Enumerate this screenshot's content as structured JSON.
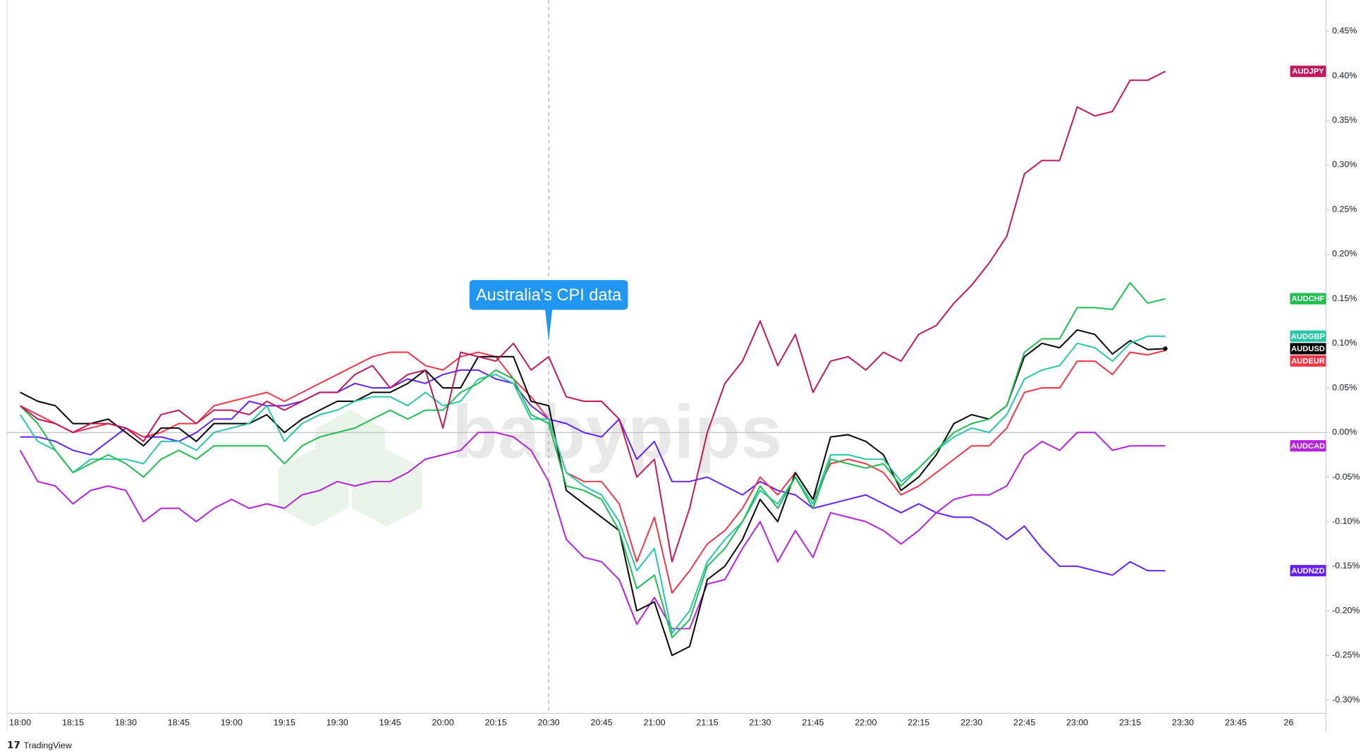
{
  "chart_data": {
    "type": "line",
    "annotation": {
      "text": "Australia's CPI data",
      "x": "20:30"
    },
    "watermark": "babypips",
    "brand": "TradingView",
    "categories": [
      "18:00",
      null,
      null,
      "18:15",
      null,
      null,
      "18:30",
      null,
      null,
      "18:45",
      null,
      null,
      "19:00",
      null,
      null,
      "19:15",
      null,
      null,
      "19:30",
      null,
      null,
      "19:45",
      null,
      null,
      "20:00",
      null,
      null,
      "20:15",
      null,
      null,
      "20:30",
      null,
      null,
      "20:45",
      null,
      null,
      "21:00",
      null,
      null,
      "21:15",
      null,
      null,
      "21:30",
      null,
      null,
      "21:45",
      null,
      null,
      "22:00",
      null,
      null,
      "22:15",
      null,
      null,
      "22:30",
      null,
      null,
      "22:45",
      null,
      null,
      "23:00",
      null,
      null,
      "23:15",
      null,
      null,
      "23:30",
      null,
      null,
      "23:45",
      null,
      null,
      "26",
      null,
      null
    ],
    "ylim": [
      -0.315,
      0.485
    ],
    "yticks": [
      {
        "value": -0.3,
        "label": "-0.30%"
      },
      {
        "value": -0.25,
        "label": "-0.25%"
      },
      {
        "value": -0.2,
        "label": "-0.20%"
      },
      {
        "value": -0.15,
        "label": "-0.15%"
      },
      {
        "value": -0.1,
        "label": "-0.10%"
      },
      {
        "value": -0.05,
        "label": "-0.05%"
      },
      {
        "value": 0,
        "label": "0.00%"
      },
      {
        "value": 0.05,
        "label": "0.05%"
      },
      {
        "value": 0.1,
        "label": "0.10%"
      },
      {
        "value": 0.15,
        "label": "0.15%"
      },
      {
        "value": 0.2,
        "label": "0.20%"
      },
      {
        "value": 0.25,
        "label": "0.25%"
      },
      {
        "value": 0.3,
        "label": "0.30%"
      },
      {
        "value": 0.35,
        "label": "0.35%"
      },
      {
        "value": 0.4,
        "label": "0.40%"
      },
      {
        "value": 0.45,
        "label": "0.45%"
      }
    ],
    "series": [
      {
        "name": "AUDJPY",
        "color": "#c2185b",
        "values": [
          0.03,
          0.015,
          0.01,
          0.0,
          0.01,
          0.01,
          0.005,
          -0.01,
          0.02,
          0.025,
          0.01,
          0.025,
          0.025,
          0.02,
          0.035,
          0.025,
          0.035,
          0.045,
          0.045,
          0.065,
          0.075,
          0.05,
          0.065,
          0.07,
          0.005,
          0.09,
          0.085,
          0.08,
          0.1,
          0.07,
          0.085,
          0.04,
          0.035,
          0.035,
          0.015,
          -0.05,
          -0.03,
          -0.145,
          -0.085,
          0.0,
          0.055,
          0.08,
          0.125,
          0.075,
          0.11,
          0.045,
          0.08,
          0.085,
          0.07,
          0.09,
          0.08,
          0.11,
          0.12,
          0.145,
          0.165,
          0.19,
          0.22,
          0.29,
          0.305,
          0.305,
          0.365,
          0.355,
          0.36,
          0.395,
          0.395,
          0.405,
          null,
          null,
          null,
          null,
          null,
          null,
          null,
          null,
          null
        ]
      },
      {
        "name": "AUDCHF",
        "color": "#1fbf4f",
        "values": [
          0.03,
          0.01,
          -0.02,
          -0.045,
          -0.035,
          -0.025,
          -0.035,
          -0.05,
          -0.03,
          -0.02,
          -0.03,
          -0.015,
          -0.015,
          -0.015,
          -0.015,
          -0.035,
          -0.015,
          -0.005,
          0.0,
          0.005,
          0.015,
          0.025,
          0.015,
          0.025,
          0.025,
          0.045,
          0.055,
          0.07,
          0.06,
          0.02,
          0.01,
          -0.06,
          -0.065,
          -0.075,
          -0.11,
          -0.175,
          -0.16,
          -0.23,
          -0.21,
          -0.15,
          -0.13,
          -0.1,
          -0.06,
          -0.085,
          -0.05,
          -0.085,
          -0.03,
          -0.035,
          -0.04,
          -0.035,
          -0.06,
          -0.04,
          -0.02,
          0.0,
          0.01,
          0.015,
          0.03,
          0.09,
          0.105,
          0.105,
          0.14,
          0.14,
          0.138,
          0.168,
          0.145,
          0.15,
          null,
          null,
          null,
          null,
          null,
          null,
          null,
          null,
          null
        ]
      },
      {
        "name": "AUDGBP",
        "color": "#26c6a6",
        "values": [
          0.02,
          -0.01,
          -0.02,
          -0.045,
          -0.03,
          -0.03,
          -0.03,
          -0.035,
          -0.01,
          -0.01,
          -0.02,
          0.0,
          0.005,
          0.01,
          0.03,
          -0.01,
          0.01,
          0.02,
          0.025,
          0.035,
          0.04,
          0.04,
          0.03,
          0.045,
          0.03,
          0.035,
          0.06,
          0.065,
          0.055,
          0.015,
          0.015,
          -0.045,
          -0.06,
          -0.07,
          -0.1,
          -0.155,
          -0.13,
          -0.225,
          -0.2,
          -0.145,
          -0.12,
          -0.1,
          -0.065,
          -0.08,
          -0.05,
          -0.08,
          -0.025,
          -0.025,
          -0.03,
          -0.03,
          -0.055,
          -0.04,
          -0.02,
          -0.005,
          0.005,
          0.0,
          0.02,
          0.06,
          0.07,
          0.075,
          0.1,
          0.095,
          0.08,
          0.1,
          0.108,
          0.108,
          null,
          null,
          null,
          null,
          null,
          null,
          null,
          null,
          null
        ]
      },
      {
        "name": "AUDUSD",
        "color": "#000000",
        "values": [
          0.045,
          0.035,
          0.03,
          0.01,
          0.01,
          0.015,
          0.0,
          -0.015,
          0.005,
          0.005,
          -0.01,
          0.01,
          0.01,
          0.01,
          0.02,
          0.0,
          0.015,
          0.025,
          0.035,
          0.035,
          0.045,
          0.045,
          0.055,
          0.07,
          0.05,
          0.05,
          0.085,
          0.085,
          0.085,
          0.035,
          0.03,
          -0.065,
          -0.08,
          -0.095,
          -0.11,
          -0.2,
          -0.19,
          -0.25,
          -0.24,
          -0.165,
          -0.15,
          -0.12,
          -0.075,
          -0.1,
          -0.045,
          -0.075,
          -0.005,
          -0.0025,
          -0.01,
          -0.025,
          -0.065,
          -0.05,
          -0.025,
          0.01,
          0.02,
          0.015,
          0.03,
          0.085,
          0.1,
          0.095,
          0.115,
          0.11,
          0.088,
          0.103,
          0.093,
          0.094,
          null,
          null,
          null,
          null,
          null,
          null,
          null,
          null,
          null
        ]
      },
      {
        "name": "AUDEUR",
        "color": "#f23645",
        "values": [
          0.03,
          0.02,
          0.01,
          0.0,
          0.005,
          0.01,
          0.005,
          -0.005,
          0.0,
          0.01,
          0.01,
          0.03,
          0.035,
          0.04,
          0.045,
          0.035,
          0.045,
          0.055,
          0.065,
          0.075,
          0.085,
          0.09,
          0.09,
          0.075,
          0.07,
          0.085,
          0.09,
          0.085,
          0.06,
          0.04,
          0.015,
          -0.045,
          -0.055,
          -0.055,
          -0.08,
          -0.145,
          -0.095,
          -0.18,
          -0.155,
          -0.125,
          -0.11,
          -0.085,
          -0.05,
          -0.07,
          -0.045,
          -0.075,
          -0.035,
          -0.03,
          -0.035,
          -0.045,
          -0.07,
          -0.06,
          -0.045,
          -0.03,
          -0.015,
          -0.015,
          0.005,
          0.045,
          0.05,
          0.05,
          0.08,
          0.08,
          0.065,
          0.09,
          0.087,
          0.092,
          null,
          null,
          null,
          null,
          null,
          null,
          null,
          null,
          null
        ]
      },
      {
        "name": "AUDCAD",
        "color": "#b620e0",
        "values": [
          -0.02,
          -0.055,
          -0.06,
          -0.08,
          -0.065,
          -0.06,
          -0.065,
          -0.1,
          -0.085,
          -0.085,
          -0.1,
          -0.085,
          -0.075,
          -0.085,
          -0.08,
          -0.085,
          -0.07,
          -0.065,
          -0.055,
          -0.06,
          -0.055,
          -0.055,
          -0.045,
          -0.03,
          -0.025,
          -0.02,
          0.0,
          0.0,
          -0.005,
          -0.02,
          -0.055,
          -0.12,
          -0.14,
          -0.145,
          -0.165,
          -0.215,
          -0.185,
          -0.22,
          -0.22,
          -0.17,
          -0.165,
          -0.13,
          -0.1,
          -0.145,
          -0.11,
          -0.14,
          -0.09,
          -0.095,
          -0.1,
          -0.11,
          -0.125,
          -0.11,
          -0.09,
          -0.075,
          -0.07,
          -0.07,
          -0.06,
          -0.025,
          -0.01,
          -0.02,
          0.0,
          0.0,
          -0.02,
          -0.015,
          -0.015,
          -0.015,
          null,
          null,
          null,
          null,
          null,
          null,
          null,
          null,
          null
        ]
      },
      {
        "name": "AUDNZD",
        "color": "#651fff",
        "values": [
          -0.005,
          -0.005,
          -0.01,
          -0.02,
          -0.025,
          -0.01,
          0.005,
          -0.005,
          -0.005,
          -0.01,
          0.0,
          0.015,
          0.015,
          0.035,
          0.03,
          0.03,
          0.035,
          0.045,
          0.045,
          0.055,
          0.05,
          0.05,
          0.06,
          0.055,
          0.065,
          0.07,
          0.07,
          0.06,
          0.055,
          0.03,
          0.015,
          0.01,
          0.0,
          -0.005,
          0.015,
          -0.03,
          -0.01,
          -0.055,
          -0.055,
          -0.05,
          -0.06,
          -0.07,
          -0.055,
          -0.065,
          -0.07,
          -0.085,
          -0.08,
          -0.075,
          -0.07,
          -0.08,
          -0.09,
          -0.08,
          -0.09,
          -0.095,
          -0.095,
          -0.105,
          -0.12,
          -0.105,
          -0.13,
          -0.15,
          -0.15,
          -0.155,
          -0.16,
          -0.145,
          -0.155,
          -0.155,
          null,
          null,
          null,
          null,
          null,
          null,
          null,
          null,
          null
        ]
      }
    ]
  }
}
